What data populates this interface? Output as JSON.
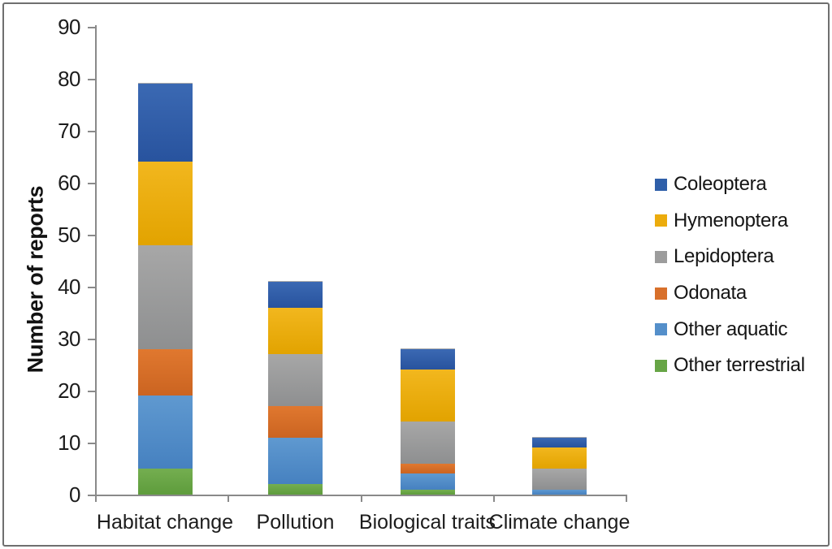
{
  "figure": {
    "background": "#ffffff",
    "border_color": "#6f6f6f"
  },
  "chart_data": {
    "type": "bar",
    "stacked": true,
    "title": "",
    "xlabel": "",
    "ylabel": "Number of reports",
    "ylim": [
      0,
      90
    ],
    "yticks": [
      0,
      10,
      20,
      30,
      40,
      50,
      60,
      70,
      80,
      90
    ],
    "grid": false,
    "legend_position": "right",
    "legend_order_top_to_bottom": [
      "Coleoptera",
      "Hymenoptera",
      "Lepidoptera",
      "Odonata",
      "Other aquatic",
      "Other terrestrial"
    ],
    "categories": [
      "Habitat change",
      "Pollution",
      "Biological traits",
      "Climate change"
    ],
    "series": [
      {
        "name": "Other terrestrial",
        "color": "#67A546",
        "color_top": "#74AE50",
        "color_bottom": "#5E9C3C",
        "values": [
          5,
          2,
          1,
          0
        ]
      },
      {
        "name": "Other aquatic",
        "color": "#548FCA",
        "color_top": "#5F99D0",
        "color_bottom": "#4681C0",
        "values": [
          14,
          9,
          3,
          1
        ]
      },
      {
        "name": "Odonata",
        "color": "#D8702B",
        "color_top": "#E0782F",
        "color_bottom": "#CB6421",
        "values": [
          9,
          6,
          2,
          0
        ]
      },
      {
        "name": "Lepidoptera",
        "color": "#9C9C9C",
        "color_top": "#A7A7A7",
        "color_bottom": "#8E8F90",
        "values": [
          20,
          10,
          8,
          4
        ]
      },
      {
        "name": "Hymenoptera",
        "color": "#ECAC0D",
        "color_top": "#F2B71E",
        "color_bottom": "#E2A300",
        "values": [
          16,
          9,
          10,
          4
        ]
      },
      {
        "name": "Coleoptera",
        "color": "#2F5FA9",
        "color_top": "#3B69B3",
        "color_bottom": "#28539E",
        "values": [
          15,
          5,
          4,
          2
        ]
      }
    ]
  }
}
